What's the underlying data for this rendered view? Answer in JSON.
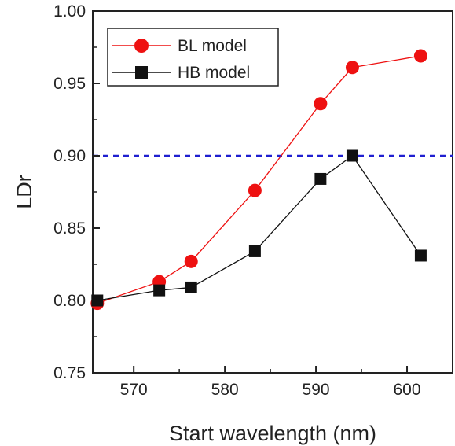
{
  "chart_data": {
    "type": "line",
    "title": "",
    "xlabel": "Start wavelength (nm)",
    "ylabel": "LDr",
    "xlim": [
      565.5,
      605
    ],
    "ylim": [
      0.75,
      1.0
    ],
    "x_ticks": [
      570,
      580,
      590,
      600
    ],
    "y_ticks": [
      0.75,
      0.8,
      0.85,
      0.9,
      0.95,
      1.0
    ],
    "x_tick_labels": [
      "570",
      "580",
      "590",
      "600"
    ],
    "y_tick_labels": [
      "0.75",
      "0.80",
      "0.85",
      "0.90",
      "0.95",
      "1.00"
    ],
    "grid": false,
    "legend_position": "top-left",
    "reference_line": {
      "y": 0.9,
      "color": "#1f1fd0",
      "style": "dashed"
    },
    "series": [
      {
        "name": "BL model",
        "color": "#ee1111",
        "marker": "circle",
        "x": [
          566,
          572.8,
          576.3,
          583.3,
          590.5,
          594.0,
          601.5
        ],
        "y": [
          0.798,
          0.813,
          0.827,
          0.876,
          0.936,
          0.961,
          0.969
        ]
      },
      {
        "name": "HB model",
        "color": "#111111",
        "marker": "square",
        "x": [
          566,
          572.8,
          576.3,
          583.3,
          590.5,
          594.0,
          601.5
        ],
        "y": [
          0.8,
          0.807,
          0.809,
          0.834,
          0.884,
          0.9,
          0.831
        ]
      }
    ]
  }
}
